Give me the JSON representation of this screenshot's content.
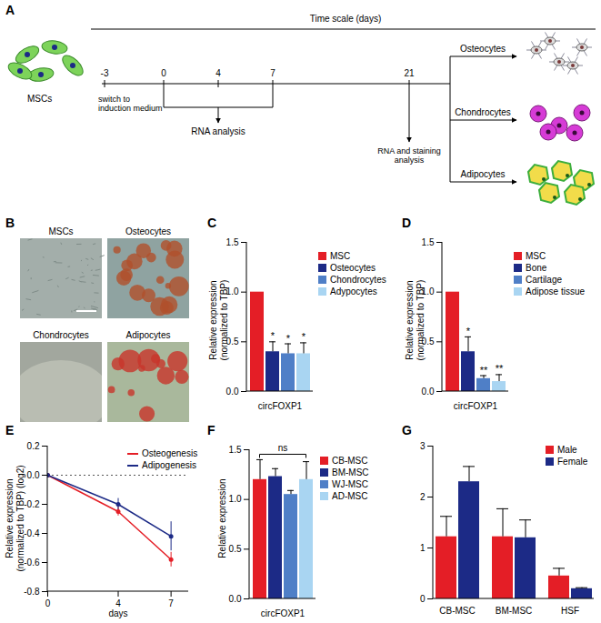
{
  "diagram": {
    "A": {
      "label": "A",
      "timeline_title": "Time scale (days)",
      "days": [
        "-3",
        "0",
        "4",
        "7",
        "21"
      ],
      "start_cells": "MSCs",
      "switch_note": "switch to\ninduction medium",
      "early_note": "RNA analysis",
      "end_note": "RNA and staining\nanalysis",
      "outcomes": [
        "Osteocytes",
        "Chondrocytes",
        "Adipocytes"
      ]
    },
    "B": {
      "label": "B",
      "images": [
        "MSCs",
        "Osteocytes",
        "Chondrocytes",
        "Adipocytes"
      ]
    }
  },
  "chart_data": [
    {
      "panel": "C",
      "type": "bar",
      "categories": [
        "MSC",
        "Osteocytes",
        "Chondrocytes",
        "Adypocytes"
      ],
      "values": [
        1.0,
        0.4,
        0.38,
        0.38
      ],
      "errors": [
        null,
        0.1,
        0.1,
        0.11
      ],
      "annotations": [
        null,
        "*",
        "*",
        "*"
      ],
      "colors": [
        "#e41e26",
        "#1c2a86",
        "#4f7fc7",
        "#a9d5f2"
      ],
      "x_label": "circFOXP1",
      "y_label": "Relative expression\n(normalized to TBP)",
      "ylim": [
        0,
        1.5
      ],
      "yticks": [
        {
          "value": 0,
          "label": "0.0"
        },
        0.5,
        {
          "value": 1,
          "label": "1.0"
        },
        1.5
      ],
      "tick_labels": "y",
      "legend": "right"
    },
    {
      "panel": "D",
      "type": "bar",
      "categories": [
        "MSC",
        "Bone",
        "Cartilage",
        "Adipose tissue"
      ],
      "values": [
        1.0,
        0.4,
        0.13,
        0.1
      ],
      "errors": [
        null,
        0.15,
        0.03,
        0.07
      ],
      "annotations": [
        null,
        "*",
        "**",
        "**"
      ],
      "colors": [
        "#e41e26",
        "#1c2a86",
        "#4f7fc7",
        "#a9d5f2"
      ],
      "x_label": "circFOXP1",
      "y_label": "Relative expression\n(normalized to TBP)",
      "ylim": [
        0,
        1.5
      ],
      "yticks": [
        {
          "value": 0,
          "label": "0.0"
        },
        0.5,
        {
          "value": 1,
          "label": "1.0"
        },
        1.5
      ],
      "tick_labels": "y",
      "legend": "right"
    },
    {
      "panel": "E",
      "type": "line",
      "x": [
        0,
        4,
        7
      ],
      "series": [
        {
          "name": "Osteogenesis",
          "color": "#e41e26",
          "values": [
            0,
            -0.25,
            -0.58
          ],
          "errors": [
            null,
            0.03,
            0.05
          ]
        },
        {
          "name": "Adipogenesis",
          "color": "#1c2a86",
          "values": [
            0,
            -0.2,
            -0.42
          ],
          "errors": [
            null,
            0.04,
            0.1
          ]
        }
      ],
      "x_label": "days",
      "y_label": "Relative expression\n(normalized to TBP) (log2)",
      "xlim": [
        0,
        8
      ],
      "xticks": [
        0,
        4,
        7
      ],
      "ylim": [
        -0.8,
        0.2
      ],
      "yticks": [
        0.2,
        {
          "value": 0,
          "label": "0.0"
        },
        -0.2,
        -0.4,
        -0.6,
        -0.8
      ],
      "reference_line": 0,
      "marker": "circle",
      "legend": "upper right"
    },
    {
      "panel": "F",
      "type": "bar",
      "categories": [
        "CB-MSC",
        "BM-MSC",
        "WJ-MSC",
        "AD-MSC"
      ],
      "values": [
        1.2,
        1.23,
        1.05,
        1.2
      ],
      "errors": [
        0.2,
        0.08,
        0.04,
        0.18
      ],
      "colors": [
        "#e41e26",
        "#1c2a86",
        "#4f7fc7",
        "#a9d5f2"
      ],
      "x_label": "circFOXP1",
      "y_label": "Relative expression",
      "ylim": [
        0,
        1.5
      ],
      "yticks": [
        {
          "value": 0,
          "label": "0.0"
        },
        0.5,
        {
          "value": 1,
          "label": "1.0"
        },
        1.5
      ],
      "comparison": {
        "text": "ns",
        "y": 1.45
      },
      "tick_labels": "y",
      "legend": "right"
    },
    {
      "panel": "G",
      "type": "bar",
      "categories": [
        "CB-MSC",
        "BM-MSC",
        "HSF"
      ],
      "series": [
        {
          "name": "Male",
          "color": "#e41e26",
          "values": [
            1.22,
            1.22,
            0.45
          ],
          "errors": [
            0.4,
            0.55,
            0.15
          ]
        },
        {
          "name": "Female",
          "color": "#1c2a86",
          "values": [
            2.3,
            1.2,
            0.2
          ],
          "errors": [
            0.3,
            0.35,
            0.02
          ]
        }
      ],
      "ylim": [
        0,
        3
      ],
      "yticks": [
        0,
        1,
        2,
        3
      ],
      "legend": "upper right"
    }
  ]
}
